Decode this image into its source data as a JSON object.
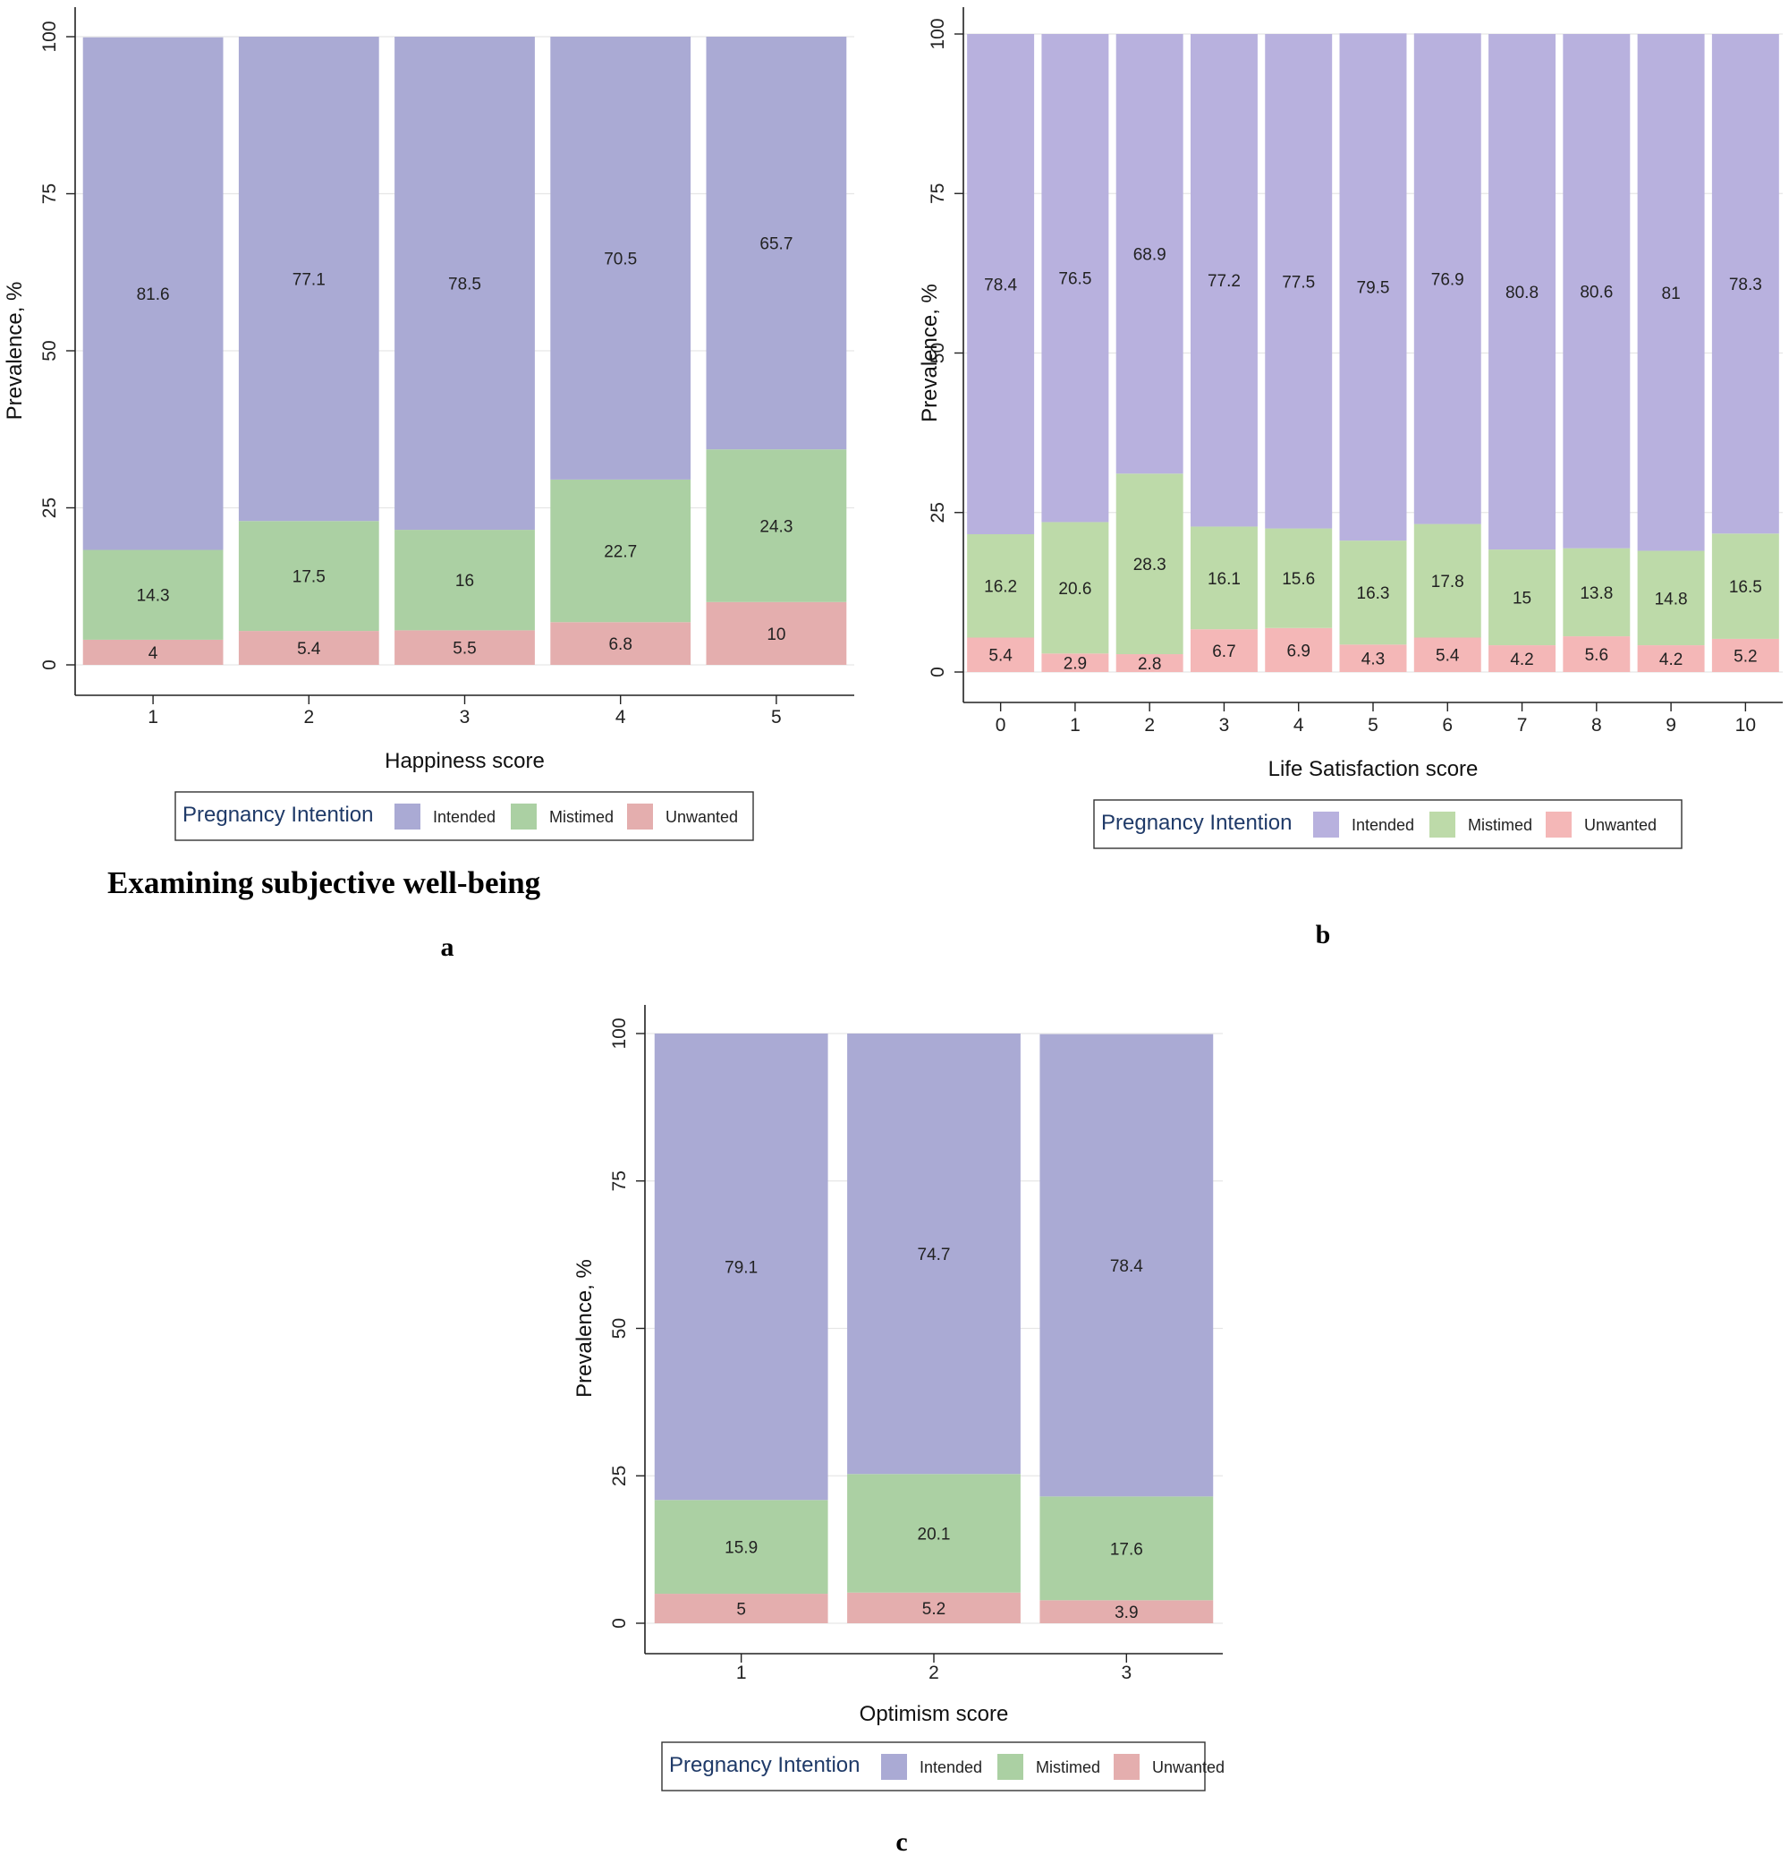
{
  "heading": "Examining subjective well-being",
  "legend": {
    "title": "Pregnancy Intention",
    "entries": [
      "Intended",
      "Mistimed",
      "Unwanted"
    ]
  },
  "chart_data": [
    {
      "type": "bar",
      "stacked": true,
      "panel": "a",
      "xlabel": "Happiness score",
      "ylabel": "Prevalence, %",
      "ylim": [
        0,
        100
      ],
      "yticks": [
        0,
        25,
        50,
        75,
        100
      ],
      "categories": [
        "1",
        "2",
        "3",
        "4",
        "5"
      ],
      "grid": true,
      "legend_position": "bottom",
      "colors": {
        "Intended": "#aaaad4",
        "Mistimed": "#abd0a3",
        "Unwanted": "#e4aeae"
      },
      "series": [
        {
          "name": "Unwanted",
          "values": [
            4,
            5.4,
            5.5,
            6.8,
            10
          ]
        },
        {
          "name": "Mistimed",
          "values": [
            14.3,
            17.5,
            16,
            22.7,
            24.3
          ]
        },
        {
          "name": "Intended",
          "values": [
            81.6,
            77.1,
            78.5,
            70.5,
            65.7
          ]
        }
      ]
    },
    {
      "type": "bar",
      "stacked": true,
      "panel": "b",
      "xlabel": "Life Satisfaction score",
      "ylabel": "Prevalence, %",
      "ylim": [
        0,
        100
      ],
      "yticks": [
        0,
        25,
        50,
        75,
        100
      ],
      "categories": [
        "0",
        "1",
        "2",
        "3",
        "4",
        "5",
        "6",
        "7",
        "8",
        "9",
        "10"
      ],
      "grid": true,
      "legend_position": "bottom",
      "colors": {
        "Intended": "#b8b1de",
        "Mistimed": "#bddaa9",
        "Unwanted": "#f4b7b7"
      },
      "series": [
        {
          "name": "Unwanted",
          "values": [
            5.4,
            2.9,
            2.8,
            6.7,
            6.9,
            4.3,
            5.4,
            4.2,
            5.6,
            4.2,
            5.2
          ]
        },
        {
          "name": "Mistimed",
          "values": [
            16.2,
            20.6,
            28.3,
            16.1,
            15.6,
            16.3,
            17.8,
            15,
            13.8,
            14.8,
            16.5
          ]
        },
        {
          "name": "Intended",
          "values": [
            78.4,
            76.5,
            68.9,
            77.2,
            77.5,
            79.5,
            76.9,
            80.8,
            80.6,
            81,
            78.3
          ]
        }
      ]
    },
    {
      "type": "bar",
      "stacked": true,
      "panel": "c",
      "xlabel": "Optimism score",
      "ylabel": "Prevalence, %",
      "ylim": [
        0,
        100
      ],
      "yticks": [
        0,
        25,
        50,
        75,
        100
      ],
      "categories": [
        "1",
        "2",
        "3"
      ],
      "grid": true,
      "legend_position": "bottom",
      "colors": {
        "Intended": "#aaaad4",
        "Mistimed": "#abd0a3",
        "Unwanted": "#e4aeae"
      },
      "series": [
        {
          "name": "Unwanted",
          "values": [
            5,
            5.2,
            3.9
          ]
        },
        {
          "name": "Mistimed",
          "values": [
            15.9,
            20.1,
            17.6
          ]
        },
        {
          "name": "Intended",
          "values": [
            79.1,
            74.7,
            78.4
          ]
        }
      ]
    }
  ]
}
